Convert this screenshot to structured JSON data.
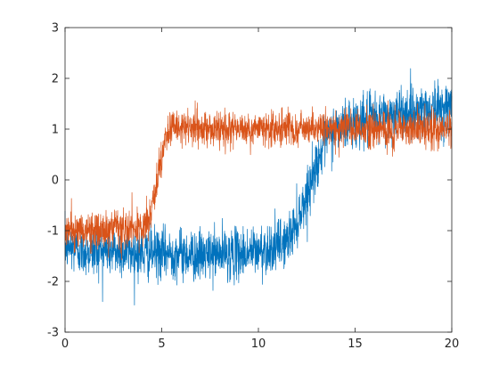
{
  "chart_data": {
    "type": "line",
    "title": "",
    "xlabel": "",
    "ylabel": "",
    "xlim": [
      0,
      20
    ],
    "ylim": [
      -3,
      3
    ],
    "grid": false,
    "legend": "none",
    "x_ticks": [
      0,
      5,
      10,
      15,
      20
    ],
    "y_ticks": [
      -3,
      -2,
      -1,
      0,
      1,
      2,
      3
    ],
    "x_tick_labels": [
      "0",
      "5",
      "10",
      "15",
      "20"
    ],
    "y_tick_labels": [
      "-3",
      "-2",
      "-1",
      "0",
      "1",
      "2",
      "3"
    ],
    "axis_color": "#262626",
    "series": [
      {
        "color": "#0072BD",
        "noise_amplitude": 0.55,
        "x": [
          0,
          1,
          2,
          3,
          4,
          5,
          6,
          7,
          8,
          9,
          10,
          11,
          11.5,
          12,
          12.5,
          13,
          13.5,
          14,
          15,
          16,
          17,
          18,
          19,
          20
        ],
        "values": [
          -1.3,
          -1.4,
          -1.4,
          -1.4,
          -1.45,
          -1.45,
          -1.45,
          -1.5,
          -1.45,
          -1.45,
          -1.4,
          -1.3,
          -1.2,
          -0.8,
          -0.3,
          0.3,
          0.8,
          1.0,
          1.15,
          1.2,
          1.3,
          1.35,
          1.4,
          1.45
        ]
      },
      {
        "color": "#D95319",
        "noise_amplitude": 0.4,
        "x": [
          0,
          1,
          2,
          3,
          4,
          4.3,
          4.6,
          4.9,
          5.2,
          5.5,
          6,
          7,
          8,
          9,
          10,
          11,
          12,
          13,
          14,
          15,
          16,
          17,
          18,
          19,
          20
        ],
        "values": [
          -1.0,
          -1.0,
          -1.0,
          -1.0,
          -0.95,
          -0.85,
          -0.4,
          0.3,
          0.85,
          1.0,
          1.0,
          1.0,
          1.0,
          1.0,
          1.0,
          1.0,
          1.0,
          1.0,
          1.0,
          1.0,
          1.0,
          1.0,
          1.0,
          1.0,
          1.0
        ]
      }
    ]
  }
}
